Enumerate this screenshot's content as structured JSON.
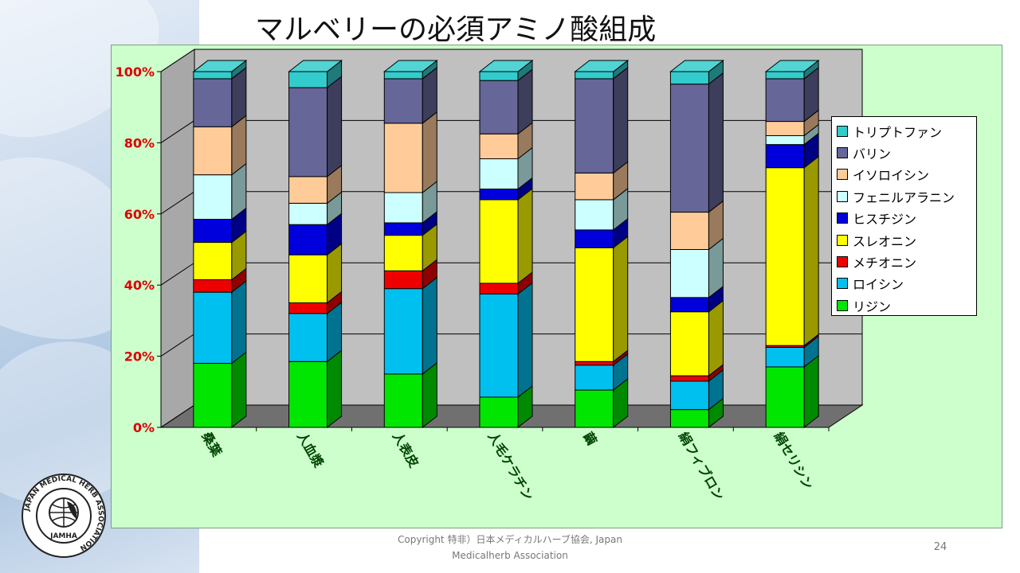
{
  "slide": {
    "title": "マルベリーの必須アミノ酸組成",
    "copyright_line1": "Copyright 特非）日本メディカルハーブ協会, Japan",
    "copyright_line2": "Medicalherb Association",
    "page_number": "24"
  },
  "logo": {
    "ring_text": "JAPAN MEDICAL HERB ASSOCIATION",
    "abbr": "JAMHA"
  },
  "chart_data": {
    "type": "bar",
    "stacked": true,
    "percent": true,
    "three_d": true,
    "categories": [
      "桑葉",
      "人血漿",
      "人表皮",
      "人毛ケラチン",
      "繭",
      "絹フィブロン",
      "絹セリシン"
    ],
    "ylim": [
      0,
      100
    ],
    "yticks": [
      0,
      20,
      40,
      60,
      80,
      100
    ],
    "ytick_labels": [
      "0%",
      "20%",
      "40%",
      "60%",
      "80%",
      "100%"
    ],
    "grid": true,
    "legend_position": "right",
    "series": [
      {
        "name": "リジン",
        "color": "#00e600",
        "values": [
          18.0,
          18.5,
          15.0,
          8.5,
          10.5,
          5.0,
          17.0
        ]
      },
      {
        "name": "ロイシン",
        "color": "#00c0f0",
        "values": [
          20.0,
          13.5,
          24.0,
          29.0,
          7.0,
          8.0,
          5.5
        ]
      },
      {
        "name": "メチオニン",
        "color": "#ee0000",
        "values": [
          3.5,
          3.0,
          5.0,
          3.0,
          1.0,
          1.5,
          0.5
        ]
      },
      {
        "name": "スレオニン",
        "color": "#ffff00",
        "values": [
          10.5,
          13.5,
          10.0,
          23.5,
          32.0,
          18.0,
          50.0
        ]
      },
      {
        "name": "ヒスチジン",
        "color": "#0000dd",
        "values": [
          6.5,
          8.5,
          3.5,
          3.0,
          5.0,
          4.0,
          6.5
        ]
      },
      {
        "name": "フェニルアラニン",
        "color": "#ccffff",
        "values": [
          12.5,
          6.0,
          8.5,
          8.5,
          8.5,
          13.5,
          2.5
        ]
      },
      {
        "name": "イソロイシン",
        "color": "#ffcc99",
        "values": [
          13.5,
          7.5,
          19.5,
          7.0,
          7.5,
          10.5,
          4.0
        ]
      },
      {
        "name": "バリン",
        "color": "#666699",
        "values": [
          13.5,
          25.0,
          12.5,
          15.0,
          26.5,
          36.0,
          12.0
        ]
      },
      {
        "name": "トリプトファン",
        "color": "#33cccc",
        "values": [
          2.0,
          4.5,
          2.0,
          2.5,
          2.0,
          3.5,
          2.0
        ]
      }
    ]
  }
}
